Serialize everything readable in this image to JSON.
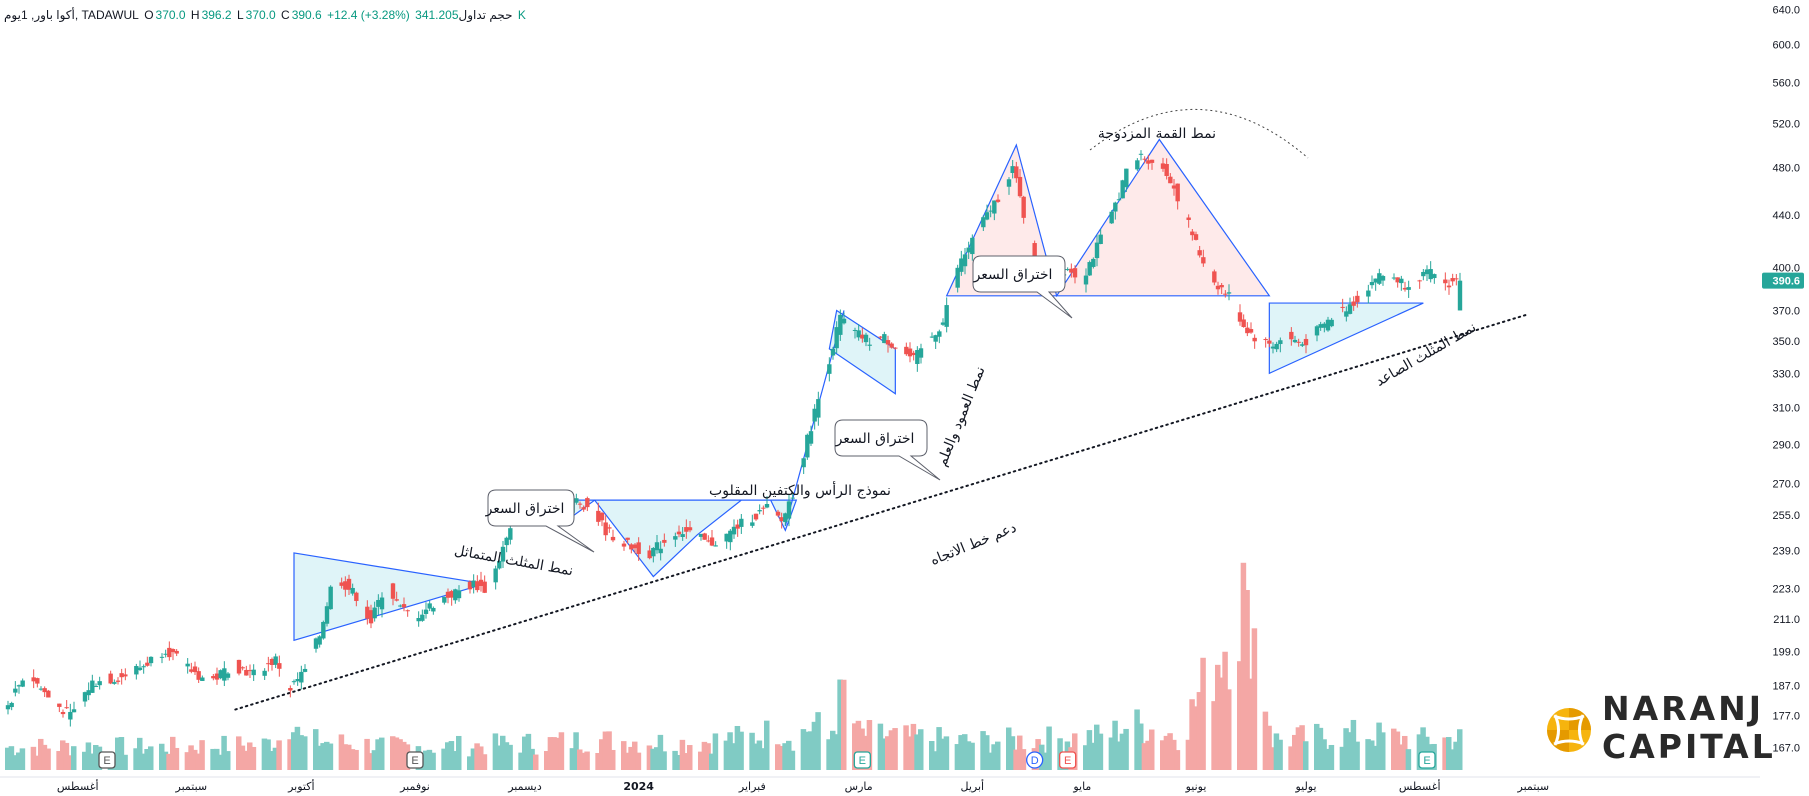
{
  "header": {
    "symbol": "أكوا باور, 1يوم, TADAWUL",
    "open_label": "O",
    "open": "370.0",
    "high_label": "H",
    "high": "396.2",
    "low_label": "L",
    "low": "370.0",
    "close_label": "C",
    "close": "390.6",
    "change": "+12.4 (+3.28%)",
    "volume_label": "حجم تداول",
    "volume": "341.205 K"
  },
  "price_tag": "390.6",
  "colors": {
    "up": "#26a69a",
    "down": "#ef5350",
    "vol_up": "#80cbc4",
    "vol_down": "#f4a7a5",
    "pattern_line": "#2962ff",
    "pattern_fill": "#d4f0f5",
    "double_top_fill": "#fde3e3",
    "price_tag": "#26a69a"
  },
  "annotations": {
    "sym_triangle": "نمط المثلث المتماثل",
    "breakout1": "اختراق السعر",
    "inv_hs": "نموذج الرأس والكتفين المقلوب",
    "breakout2": "اختراق السعر",
    "pole_flag": "نمط العمود والعلم",
    "breakout3": "اختراق السعر",
    "double_top": "نمط القمة المزدوجة",
    "asc_triangle": "نمط المثلث الصاعد",
    "trend_support": "دعم خط الاتجاه"
  },
  "events": [
    "E",
    "E",
    "E",
    "D",
    "E",
    "E"
  ],
  "logo": {
    "line1": "NARANJ",
    "line2": "CAPITAL"
  },
  "chart_data": {
    "type": "candlestick",
    "title": "",
    "y_axis": {
      "scale": "log",
      "ticks": [
        167.0,
        177.0,
        187.0,
        199.0,
        211.0,
        223.0,
        239.0,
        255.0,
        270.0,
        290.0,
        310.0,
        330.0,
        350.0,
        370.0,
        400.0,
        440.0,
        480.0,
        520.0,
        560.0,
        600.0,
        640.0
      ],
      "tick_labels": [
        "167.0",
        "177.0",
        "187.0",
        "199.0",
        "211.0",
        "223.0",
        "239.0",
        "255.0",
        "270.0",
        "290.0",
        "310.0",
        "330.0",
        "350.0",
        "370.0",
        "400.0",
        "440.0",
        "480.0",
        "520.0",
        "560.0",
        "600.0",
        "640.0"
      ],
      "range": [
        163,
        645
      ]
    },
    "x_axis": {
      "labels": [
        "أغسطس",
        "سبتمبر",
        "أكتوبر",
        "نوفمبر",
        "ديسمبر",
        "2024",
        "فبراير",
        "مارس",
        "أبريل",
        "مايو",
        "يونيو",
        "يوليو",
        "أغسطس",
        "سبتمبر"
      ],
      "label_days": [
        19,
        50,
        80,
        111,
        141,
        172,
        203,
        232,
        263,
        293,
        324,
        354,
        385,
        416
      ]
    },
    "price_path": [
      [
        0,
        178
      ],
      [
        6,
        192
      ],
      [
        12,
        183
      ],
      [
        18,
        177
      ],
      [
        24,
        188
      ],
      [
        32,
        190
      ],
      [
        38,
        194
      ],
      [
        44,
        200
      ],
      [
        50,
        193
      ],
      [
        56,
        188
      ],
      [
        62,
        194
      ],
      [
        68,
        191
      ],
      [
        74,
        196
      ],
      [
        78,
        186
      ],
      [
        82,
        192
      ],
      [
        86,
        205
      ],
      [
        90,
        229
      ],
      [
        96,
        220
      ],
      [
        100,
        210
      ],
      [
        104,
        225
      ],
      [
        108,
        215
      ],
      [
        112,
        212
      ],
      [
        118,
        218
      ],
      [
        124,
        222
      ],
      [
        128,
        225
      ],
      [
        132,
        222
      ],
      [
        136,
        240
      ],
      [
        140,
        255
      ],
      [
        144,
        262
      ],
      [
        148,
        258
      ],
      [
        152,
        256
      ],
      [
        156,
        262
      ],
      [
        160,
        258
      ],
      [
        164,
        248
      ],
      [
        168,
        243
      ],
      [
        172,
        240
      ],
      [
        176,
        238
      ],
      [
        180,
        243
      ],
      [
        184,
        248
      ],
      [
        188,
        246
      ],
      [
        192,
        242
      ],
      [
        196,
        244
      ],
      [
        200,
        250
      ],
      [
        204,
        254
      ],
      [
        208,
        258
      ],
      [
        212,
        252
      ],
      [
        216,
        270
      ],
      [
        220,
        300
      ],
      [
        224,
        330
      ],
      [
        228,
        365
      ],
      [
        232,
        355
      ],
      [
        236,
        350
      ],
      [
        240,
        352
      ],
      [
        244,
        345
      ],
      [
        248,
        338
      ],
      [
        252,
        350
      ],
      [
        256,
        362
      ],
      [
        260,
        400
      ],
      [
        264,
        420
      ],
      [
        268,
        440
      ],
      [
        272,
        460
      ],
      [
        275,
        480
      ],
      [
        278,
        440
      ],
      [
        282,
        390
      ],
      [
        286,
        395
      ],
      [
        290,
        400
      ],
      [
        294,
        392
      ],
      [
        298,
        415
      ],
      [
        302,
        440
      ],
      [
        306,
        475
      ],
      [
        310,
        490
      ],
      [
        314,
        485
      ],
      [
        318,
        470
      ],
      [
        322,
        440
      ],
      [
        326,
        410
      ],
      [
        330,
        390
      ],
      [
        334,
        380
      ],
      [
        338,
        360
      ],
      [
        342,
        350
      ],
      [
        346,
        348
      ],
      [
        350,
        352
      ],
      [
        354,
        348
      ],
      [
        358,
        356
      ],
      [
        362,
        365
      ],
      [
        366,
        372
      ],
      [
        370,
        380
      ],
      [
        374,
        393
      ],
      [
        378,
        395
      ],
      [
        382,
        388
      ],
      [
        386,
        394
      ],
      [
        390,
        396
      ],
      [
        393,
        388
      ],
      [
        396,
        390.6
      ]
    ],
    "volume_path": [
      [
        0,
        30
      ],
      [
        20,
        32
      ],
      [
        40,
        30
      ],
      [
        60,
        33
      ],
      [
        70,
        34
      ],
      [
        76,
        45
      ],
      [
        78,
        85
      ],
      [
        80,
        40
      ],
      [
        110,
        30
      ],
      [
        140,
        35
      ],
      [
        160,
        40
      ],
      [
        185,
        36
      ],
      [
        205,
        45
      ],
      [
        210,
        55
      ],
      [
        215,
        42
      ],
      [
        220,
        62
      ],
      [
        224,
        40
      ],
      [
        228,
        105
      ],
      [
        232,
        48
      ],
      [
        260,
        38
      ],
      [
        280,
        40
      ],
      [
        300,
        45
      ],
      [
        306,
        62
      ],
      [
        320,
        45
      ],
      [
        338,
        240
      ],
      [
        345,
        40
      ],
      [
        370,
        48
      ],
      [
        385,
        40
      ],
      [
        396,
        42
      ]
    ],
    "volume_ylim": [
      0,
      260
    ],
    "patterns": {
      "symmetric_triangle": [
        [
          78,
          238
        ],
        [
          130,
          225
        ],
        [
          78,
          203
        ]
      ],
      "inverse_head_shoulders_neckline": [
        [
          136,
          262
        ],
        [
          215,
          262
        ]
      ],
      "flag_channel": [
        [
          226,
          370
        ],
        [
          242,
          345
        ],
        [
          242,
          318
        ],
        [
          224,
          345
        ]
      ],
      "double_top_neckline": [
        [
          256,
          380
        ],
        [
          344,
          380
        ]
      ],
      "ascending_triangle": [
        [
          344,
          375
        ],
        [
          386,
          375
        ],
        [
          344,
          330
        ]
      ],
      "trendline_support": [
        [
          62,
          179
        ],
        [
          414,
          367
        ]
      ]
    }
  }
}
